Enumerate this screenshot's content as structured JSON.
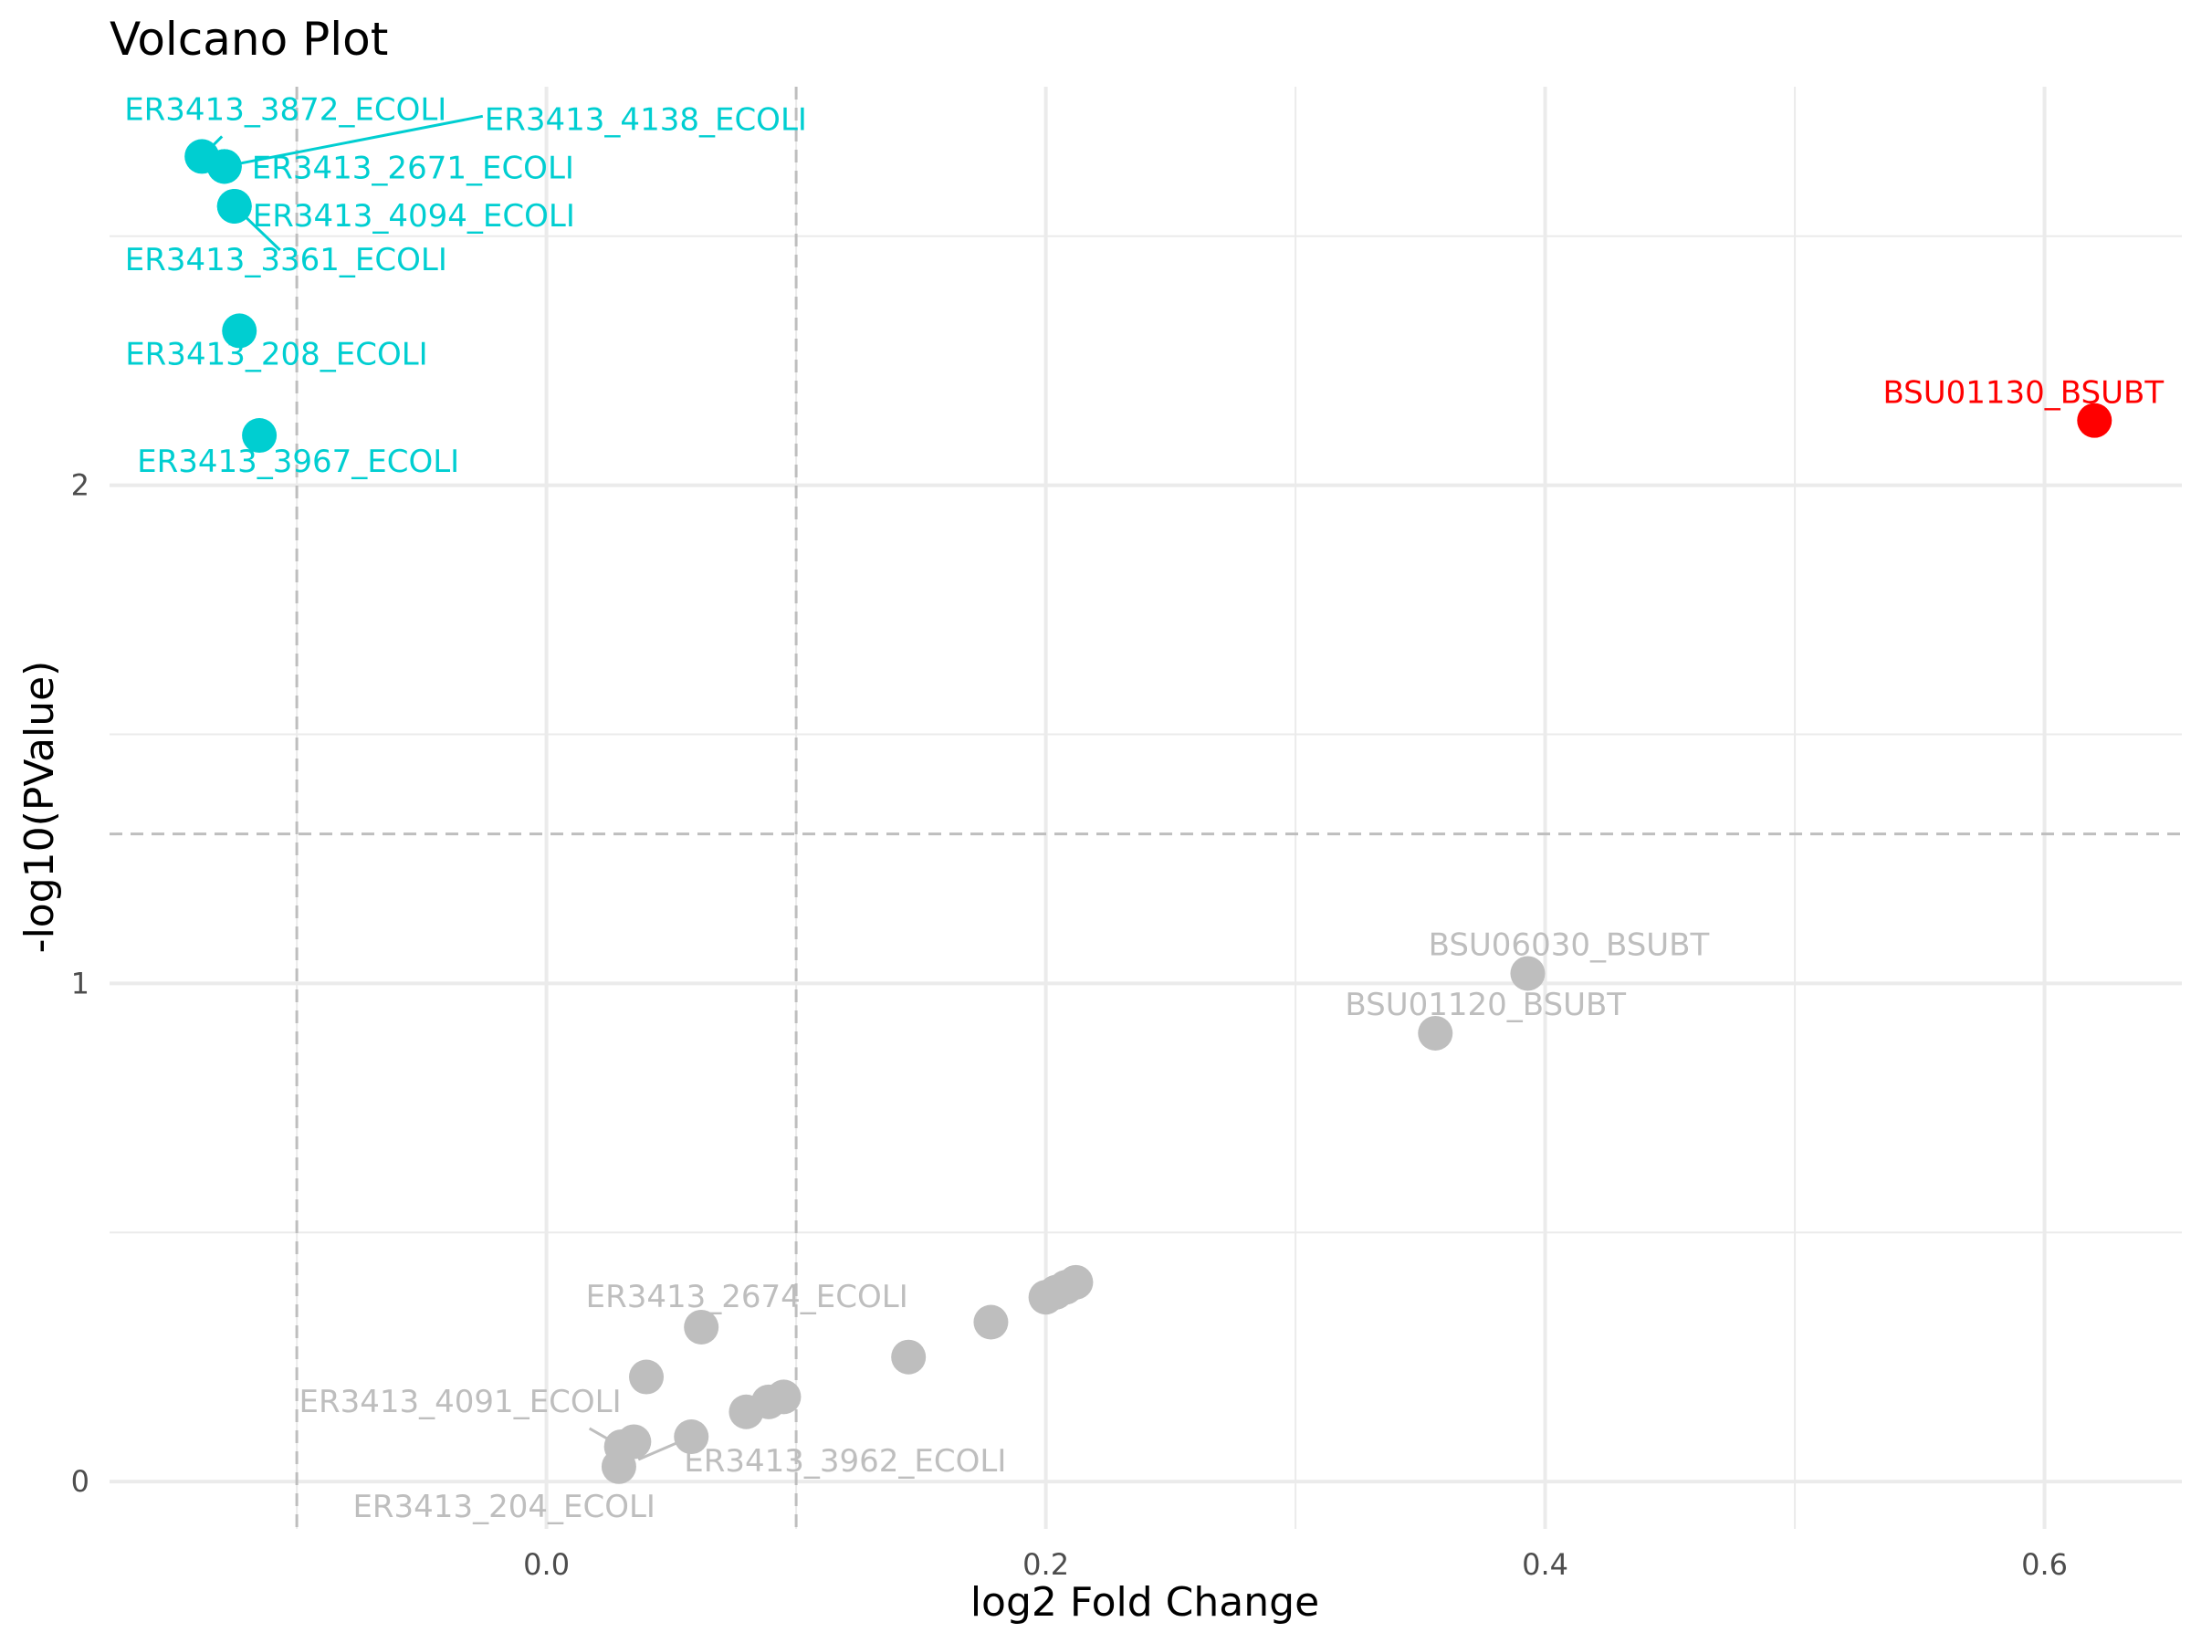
{
  "chart_data": {
    "type": "scatter",
    "title": "Volcano Plot",
    "xlabel": "log2 Fold Change",
    "ylabel": "-log10(PValue)",
    "xlim": [
      -0.175,
      0.655
    ],
    "ylim": [
      -0.095,
      2.8
    ],
    "x_ticks": [
      0.0,
      0.2,
      0.4,
      0.6
    ],
    "x_tick_labels": [
      "0.0",
      "0.2",
      "0.4",
      "0.6"
    ],
    "y_ticks": [
      0,
      1,
      2
    ],
    "y_tick_labels": [
      "0",
      "1",
      "2"
    ],
    "x_minor_gridlines": [
      -0.1,
      0.1,
      0.3,
      0.5
    ],
    "y_minor_gridlines": [
      0.5,
      1.5,
      2.5
    ],
    "fc_thresholds": [
      -0.1,
      0.1
    ],
    "p_threshold": 1.3,
    "grid": true,
    "legend": "none",
    "colors": {
      "down": "#00CED1",
      "up": "#FF0000",
      "ns": "#BEBEBE",
      "threshold": "#BEBEBE",
      "grid": "#EBEBEB"
    },
    "points": [
      {
        "x": -0.138,
        "y": 2.66,
        "group": "down",
        "label": "ER3413_3872_ECOLI"
      },
      {
        "x": -0.129,
        "y": 2.64,
        "group": "down",
        "label": "ER3413_4138_ECOLI"
      },
      {
        "x": -0.129,
        "y": 2.64,
        "group": "down",
        "label": "ER3413_2671_ECOLI"
      },
      {
        "x": -0.125,
        "y": 2.56,
        "group": "down",
        "label": "ER3413_4094_ECOLI"
      },
      {
        "x": -0.125,
        "y": 2.56,
        "group": "down",
        "label": "ER3413_3361_ECOLI"
      },
      {
        "x": -0.123,
        "y": 2.31,
        "group": "down",
        "label": "ER3413_208_ECOLI"
      },
      {
        "x": -0.115,
        "y": 2.1,
        "group": "down",
        "label": "ER3413_3967_ECOLI"
      },
      {
        "x": 0.62,
        "y": 2.13,
        "group": "up",
        "label": "BSU01130_BSUBT"
      },
      {
        "x": 0.393,
        "y": 1.02,
        "group": "ns",
        "label": "BSU06030_BSUBT"
      },
      {
        "x": 0.356,
        "y": 0.9,
        "group": "ns",
        "label": "BSU01120_BSUBT"
      },
      {
        "x": 0.062,
        "y": 0.31,
        "group": "ns",
        "label": "ER3413_2674_ECOLI"
      },
      {
        "x": 0.04,
        "y": 0.21,
        "group": "ns",
        "label": ""
      },
      {
        "x": 0.03,
        "y": 0.07,
        "group": "ns",
        "label": "ER3413_4091_ECOLI"
      },
      {
        "x": 0.035,
        "y": 0.08,
        "group": "ns",
        "label": ""
      },
      {
        "x": 0.058,
        "y": 0.09,
        "group": "ns",
        "label": "ER3413_3962_ECOLI"
      },
      {
        "x": 0.029,
        "y": 0.03,
        "group": "ns",
        "label": "ER3413_204_ECOLI"
      },
      {
        "x": 0.08,
        "y": 0.14,
        "group": "ns",
        "label": ""
      },
      {
        "x": 0.089,
        "y": 0.16,
        "group": "ns",
        "label": ""
      },
      {
        "x": 0.095,
        "y": 0.17,
        "group": "ns",
        "label": ""
      },
      {
        "x": 0.145,
        "y": 0.25,
        "group": "ns",
        "label": ""
      },
      {
        "x": 0.178,
        "y": 0.32,
        "group": "ns",
        "label": ""
      },
      {
        "x": 0.2,
        "y": 0.37,
        "group": "ns",
        "label": ""
      },
      {
        "x": 0.204,
        "y": 0.38,
        "group": "ns",
        "label": ""
      },
      {
        "x": 0.208,
        "y": 0.39,
        "group": "ns",
        "label": ""
      },
      {
        "x": 0.212,
        "y": 0.4,
        "group": "ns",
        "label": ""
      }
    ]
  }
}
